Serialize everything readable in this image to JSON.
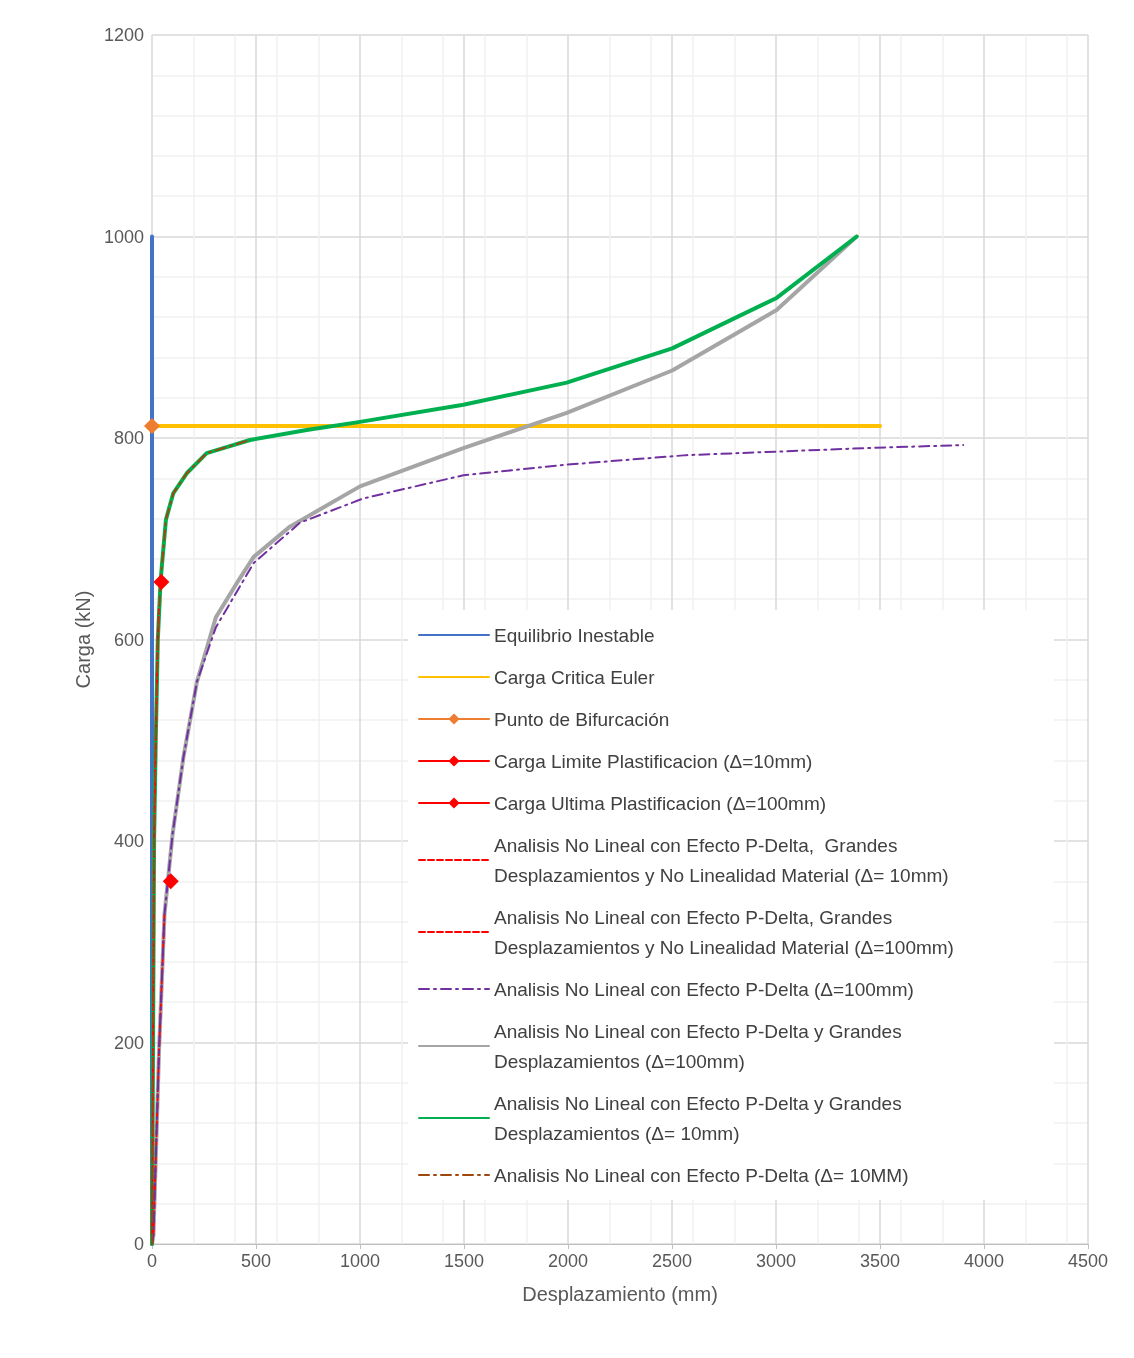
{
  "chart_data": {
    "type": "line",
    "xlabel": "Desplazamiento (mm)",
    "ylabel": "Carga (kN)",
    "xlim": [
      0,
      4500
    ],
    "xticks": [
      0,
      500,
      1000,
      1500,
      2000,
      2500,
      3000,
      3500,
      4000,
      4500
    ],
    "ylim": [
      0,
      1200
    ],
    "yticks": [
      0,
      200,
      400,
      600,
      800,
      1000,
      1200
    ],
    "grid": true,
    "legend": "bottom right",
    "marker": "none",
    "series": [
      {
        "name": "Equilibrio Inestable",
        "color": "#4472c4",
        "line_style": "solid",
        "x": [
          0,
          0
        ],
        "values": [
          0,
          1000
        ]
      },
      {
        "name": "Carga Critica Euler",
        "color": "#ffc000",
        "line_style": "solid",
        "x": [
          0,
          3500
        ],
        "values": [
          812,
          812
        ]
      },
      {
        "name": "Punto de Bifurcación",
        "color": "#ed7d31",
        "marker": "diamond",
        "x": [
          0
        ],
        "values": [
          812
        ]
      },
      {
        "name": "Carga Limite Plastificacion (Δ=10mm)",
        "color": "#ff0000",
        "marker": "diamond",
        "x": [
          45
        ],
        "values": [
          657
        ]
      },
      {
        "name": "Carga Ultima Plastificacion (Δ=100mm)",
        "color": "#ff0000",
        "marker": "diamond",
        "x": [
          90
        ],
        "values": [
          360
        ]
      },
      {
        "name": "Analisis No Lineal con Efecto P-Delta,  Grandes Desplazamientos y No Linealidad Material (Δ= 10mm)",
        "color": "#ff0000",
        "line_style": "dashed",
        "x": [
          0,
          5,
          10,
          18,
          28,
          33
        ],
        "values": [
          0,
          200,
          400,
          500,
          600,
          630
        ]
      },
      {
        "name": "Analisis No Lineal con Efecto P-Delta, Grandes Desplazamientos y No Linealidad Material (Δ=100mm)",
        "color": "#ff0000",
        "line_style": "dashed",
        "x": [
          0,
          7,
          34,
          60
        ],
        "values": [
          0,
          9,
          193,
          327
        ]
      },
      {
        "name": "Analisis No Lineal con Efecto P-Delta (Δ=100mm)",
        "color": "#7030a0",
        "line_style": "dashdot",
        "x": [
          0,
          7,
          34,
          60,
          99,
          151,
          216,
          307,
          489,
          712,
          1016,
          1497,
          1962,
          2571,
          3436,
          3900
        ],
        "values": [
          0,
          9,
          193,
          327,
          407,
          483,
          558,
          612,
          676,
          716,
          740,
          763,
          773,
          783,
          790,
          793
        ]
      },
      {
        "name": "Analisis No Lineal con Efecto P-Delta y Grandes Desplazamientos (Δ=100mm)",
        "color": "#a5a5a5",
        "line_style": "solid",
        "x": [
          0,
          7,
          34,
          60,
          99,
          151,
          216,
          307,
          423,
          489,
          663,
          1000,
          1497,
          1994,
          2501,
          3003,
          3388
        ],
        "values": [
          0,
          9,
          193,
          327,
          407,
          483,
          558,
          622,
          661,
          682,
          712,
          752,
          790,
          825,
          867,
          927,
          1000
        ]
      },
      {
        "name": "Analisis No Lineal con Efecto P-Delta y Grandes Desplazamientos (Δ= 10mm)",
        "color": "#00b050",
        "line_style": "solid",
        "x": [
          0,
          5,
          10,
          18,
          28,
          41,
          47,
          67,
          102,
          167,
          263,
          359,
          471,
          744,
          1000,
          1497,
          1994,
          2501,
          3003,
          3388
        ],
        "values": [
          0,
          200,
          400,
          500,
          600,
          657,
          672,
          719,
          745,
          765,
          785,
          791,
          798,
          808,
          816,
          833,
          855,
          889,
          939,
          1000
        ]
      },
      {
        "name": "Analisis No Lineal con Efecto P-Delta (Δ= 10MM)",
        "color": "#9e480e",
        "line_style": "dashdot",
        "x": [
          0,
          5,
          10,
          18,
          28,
          41,
          47,
          67,
          102,
          167,
          263,
          359,
          471
        ],
        "values": [
          0,
          200,
          400,
          500,
          600,
          657,
          672,
          719,
          745,
          765,
          785,
          791,
          798
        ]
      }
    ]
  }
}
